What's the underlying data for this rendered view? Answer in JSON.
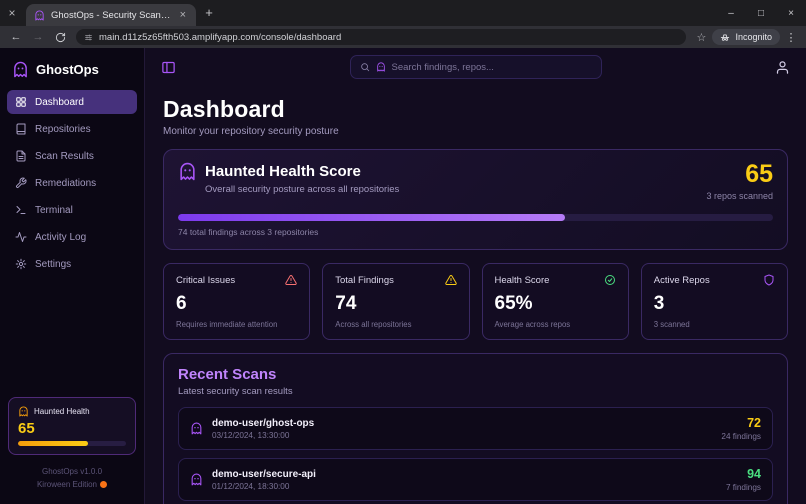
{
  "colors": {
    "accent": "#a855f7",
    "warning": "#facc15",
    "danger": "#f87171",
    "success": "#4ade80"
  },
  "browser": {
    "tab_title": "GhostOps - Security Scanner",
    "url": "main.d11z5z65fth503.amplifyapp.com/console/dashboard",
    "incognito_label": "Incognito",
    "glyphs": {
      "wm_close": "×",
      "tab_close": "×",
      "new_tab": "+",
      "minimize": "–",
      "maximize": "□",
      "close": "×",
      "back": "←",
      "forward": "→",
      "star": "☆",
      "menu": "⋮"
    }
  },
  "sidebar": {
    "brand": "GhostOps",
    "items": [
      {
        "label": "Dashboard"
      },
      {
        "label": "Repositories"
      },
      {
        "label": "Scan Results"
      },
      {
        "label": "Remediations"
      },
      {
        "label": "Terminal"
      },
      {
        "label": "Activity Log"
      },
      {
        "label": "Settings"
      }
    ],
    "health_widget": {
      "title": "Haunted Health",
      "score": "65",
      "progress_pct": 65
    },
    "footer": {
      "version": "GhostOps v1.0.0",
      "edition": "Kiroween Edition"
    }
  },
  "topbar": {
    "search_placeholder": "Search findings, repos..."
  },
  "page": {
    "title": "Dashboard",
    "subtitle": "Monitor your repository security posture"
  },
  "health_card": {
    "title": "Haunted Health Score",
    "subtitle": "Overall security posture across all repositories",
    "score": "65",
    "scanned": "3 repos scanned",
    "progress_pct": 65,
    "note": "74 total findings across 3 repositories"
  },
  "stats": [
    {
      "label": "Critical Issues",
      "value": "6",
      "sub": "Requires immediate attention",
      "color": "#f87171"
    },
    {
      "label": "Total Findings",
      "value": "74",
      "sub": "Across all repositories",
      "color": "#facc15"
    },
    {
      "label": "Health Score",
      "value": "65%",
      "sub": "Average across repos",
      "color": "#4ade80"
    },
    {
      "label": "Active Repos",
      "value": "3",
      "sub": "3 scanned",
      "color": "#a855f7"
    }
  ],
  "recent": {
    "title": "Recent Scans",
    "subtitle": "Latest security scan results",
    "items": [
      {
        "repo": "demo-user/ghost-ops",
        "date": "03/12/2024, 13:30:00",
        "score": "72",
        "findings": "24 findings",
        "score_color": "#facc15"
      },
      {
        "repo": "demo-user/secure-api",
        "date": "01/12/2024, 18:30:00",
        "score": "94",
        "findings": "7 findings",
        "score_color": "#4ade80"
      }
    ]
  }
}
